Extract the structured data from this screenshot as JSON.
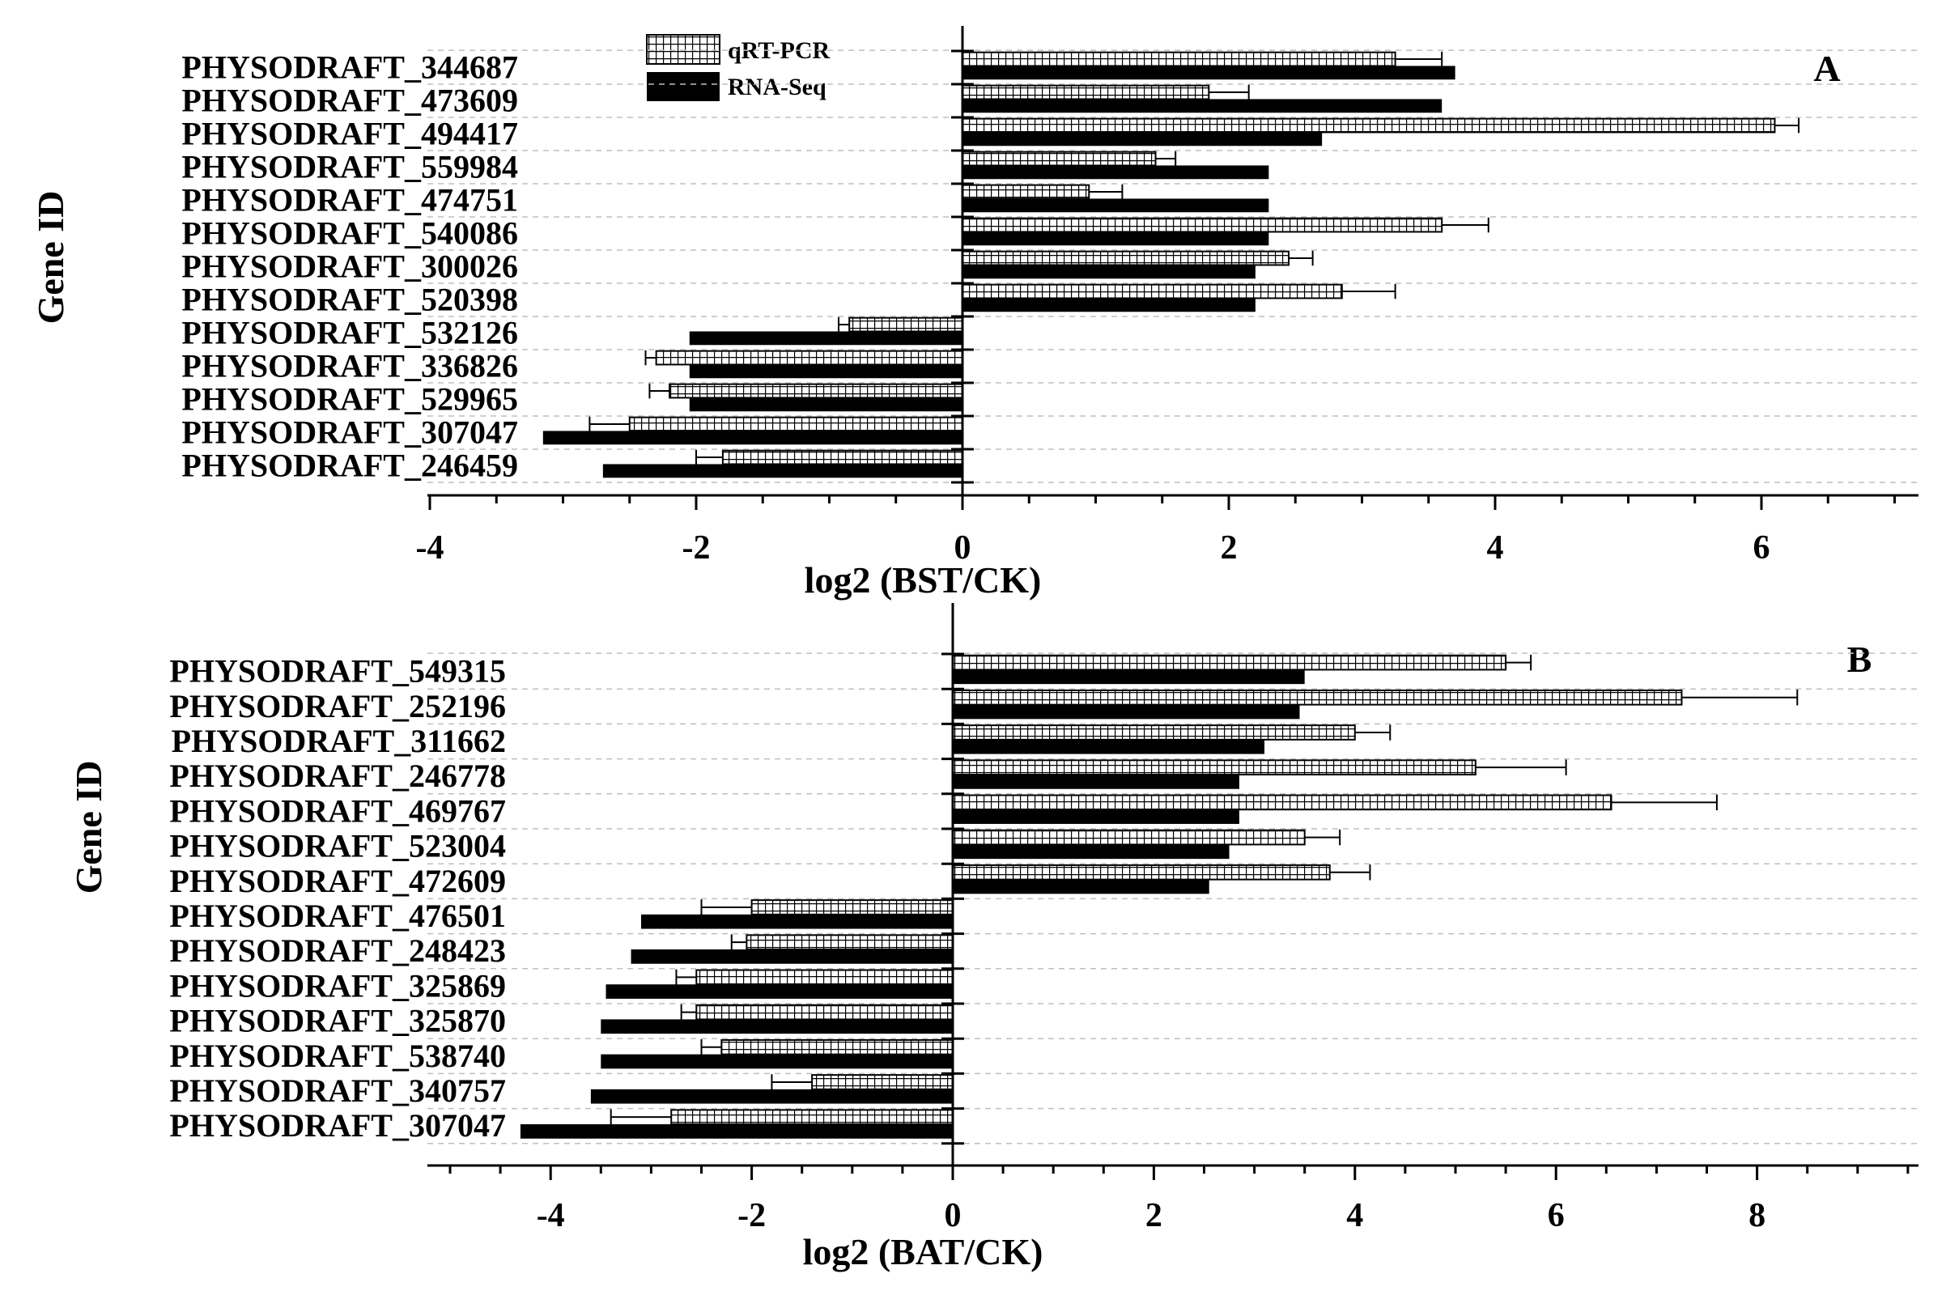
{
  "legend": {
    "qpcr_label": "qRT-PCR",
    "rnaseq_label": "RNA-Seq"
  },
  "colors": {
    "rnaseq_fill": "#000000",
    "qpcr_fill": "#ffffff",
    "grid": "#bfbfbf"
  },
  "chart_data": [
    {
      "type": "bar",
      "orientation": "horizontal",
      "panel": "A",
      "title": "",
      "xlabel": "log2 (BST/CK)",
      "ylabel": "Gene ID",
      "xlim": [
        -4,
        7.2
      ],
      "xticks": [
        -4,
        -2,
        0,
        2,
        4,
        6
      ],
      "xtick_labels": [
        "-4",
        "-2",
        "0",
        "2",
        "4",
        "6"
      ],
      "grid": "horizontal dashed",
      "legend_position": "top",
      "categories": [
        "PHYSODRAFT_344687",
        "PHYSODRAFT_473609",
        "PHYSODRAFT_494417",
        "PHYSODRAFT_559984",
        "PHYSODRAFT_474751",
        "PHYSODRAFT_540086",
        "PHYSODRAFT_300026",
        "PHYSODRAFT_520398",
        "PHYSODRAFT_532126",
        "PHYSODRAFT_336826",
        "PHYSODRAFT_529965",
        "PHYSODRAFT_307047",
        "PHYSODRAFT_246459"
      ],
      "series": [
        {
          "name": "qRT-PCR",
          "values": [
            3.25,
            1.85,
            6.1,
            1.45,
            0.95,
            3.6,
            2.45,
            2.85,
            -0.85,
            -2.3,
            -2.2,
            -2.5,
            -1.8
          ],
          "errors": [
            0.35,
            0.3,
            0.18,
            0.15,
            0.25,
            0.35,
            0.18,
            0.4,
            0.08,
            0.08,
            0.15,
            0.3,
            0.2
          ]
        },
        {
          "name": "RNA-Seq",
          "values": [
            3.7,
            3.6,
            2.7,
            2.3,
            2.3,
            2.3,
            2.2,
            2.2,
            -2.05,
            -2.05,
            -2.05,
            -3.15,
            -2.7
          ]
        }
      ]
    },
    {
      "type": "bar",
      "orientation": "horizontal",
      "panel": "B",
      "title": "",
      "xlabel": "log2 (BAT/CK)",
      "ylabel": "Gene ID",
      "xlim": [
        -5.2,
        9.6
      ],
      "xticks": [
        -4,
        -2,
        0,
        2,
        4,
        6,
        8
      ],
      "xtick_labels": [
        "-4",
        "-2",
        "0",
        "2",
        "4",
        "6",
        "8"
      ],
      "grid": "horizontal dashed",
      "legend_position": "top",
      "categories": [
        "PHYSODRAFT_549315",
        "PHYSODRAFT_252196",
        "PHYSODRAFT_311662",
        "PHYSODRAFT_246778",
        "PHYSODRAFT_469767",
        "PHYSODRAFT_523004",
        "PHYSODRAFT_472609",
        "PHYSODRAFT_476501",
        "PHYSODRAFT_248423",
        "PHYSODRAFT_325869",
        "PHYSODRAFT_325870",
        "PHYSODRAFT_538740",
        "PHYSODRAFT_340757",
        "PHYSODRAFT_307047"
      ],
      "series": [
        {
          "name": "qRT-PCR",
          "values": [
            5.5,
            7.25,
            4.0,
            5.2,
            6.55,
            3.5,
            3.75,
            -2.0,
            -2.05,
            -2.55,
            -2.55,
            -2.3,
            -1.4,
            -2.8
          ],
          "errors": [
            0.25,
            1.15,
            0.35,
            0.9,
            1.05,
            0.35,
            0.4,
            0.5,
            0.15,
            0.2,
            0.15,
            0.2,
            0.4,
            0.6
          ]
        },
        {
          "name": "RNA-Seq",
          "values": [
            3.5,
            3.45,
            3.1,
            2.85,
            2.85,
            2.75,
            2.55,
            -3.1,
            -3.2,
            -3.45,
            -3.5,
            -3.5,
            -3.6,
            -4.3
          ]
        }
      ]
    }
  ]
}
